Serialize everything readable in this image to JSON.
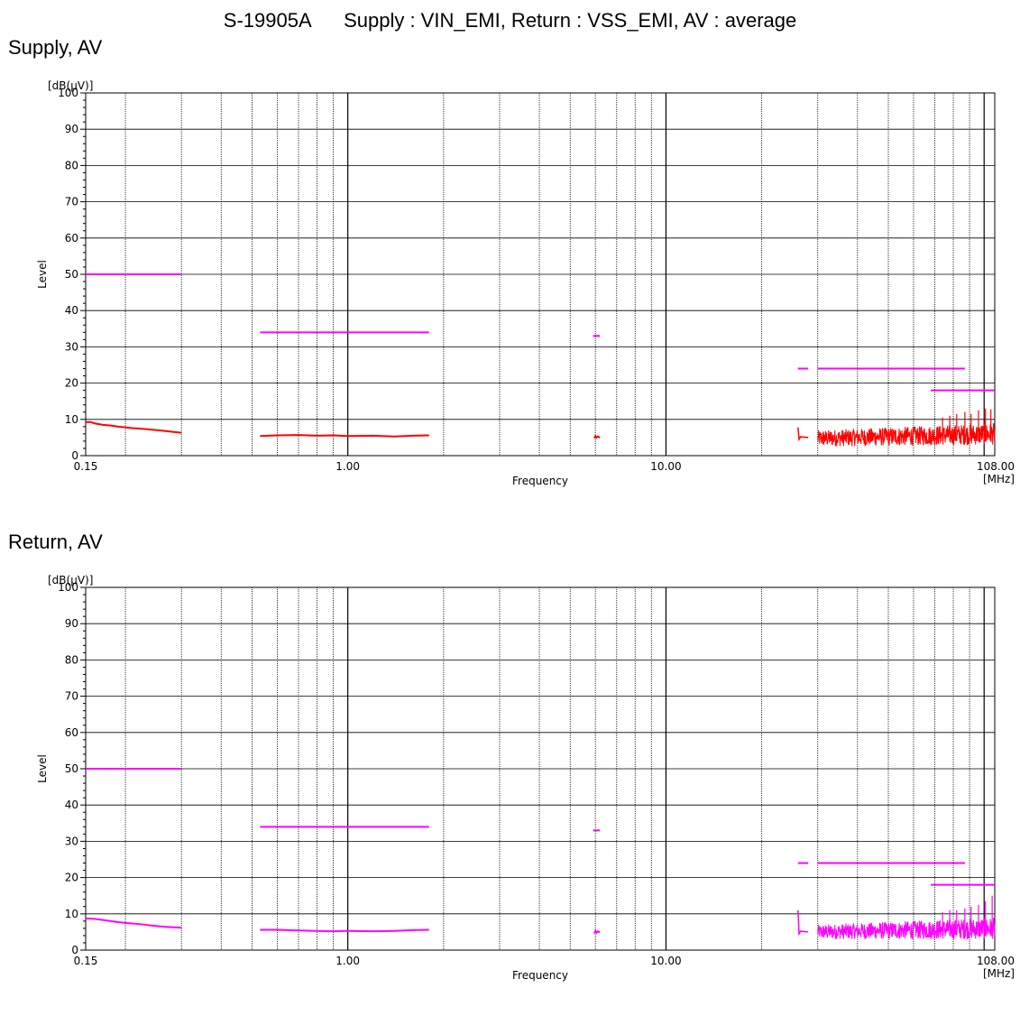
{
  "page": {
    "title": "S-19905A      Supply : VIN_EMI, Return : VSS_EMI, AV : average"
  },
  "colors": {
    "limit": "#ff00ff",
    "supply_trace": "#ff0000",
    "return_trace": "#ff00ff",
    "grid": "#000000"
  },
  "chart_data": [
    {
      "type": "line",
      "title": "Supply, AV",
      "xlabel": "Frequency",
      "xunit": "[MHz]",
      "ylabel": "Level",
      "yunit": "[dB(μV)]",
      "xscale": "log",
      "xlim": [
        0.15,
        108
      ],
      "ylim": [
        0,
        100
      ],
      "xtick_labels": [
        "0.15",
        "1.00",
        "10.00",
        "108.00"
      ],
      "ytick_labels": [
        "0",
        "10",
        "20",
        "30",
        "40",
        "50",
        "60",
        "70",
        "80",
        "90",
        "100"
      ],
      "grid": true,
      "series": [
        {
          "role": "limit",
          "segments": [
            [
              [
                0.15,
                50
              ],
              [
                0.3,
                50
              ]
            ],
            [
              [
                0.53,
                34
              ],
              [
                1.8,
                34
              ]
            ],
            [
              [
                5.9,
                33
              ],
              [
                6.2,
                33
              ]
            ],
            [
              [
                26,
                24
              ],
              [
                28,
                24
              ]
            ],
            [
              [
                30,
                24
              ],
              [
                87,
                24
              ]
            ],
            [
              [
                68,
                18
              ],
              [
                108,
                18
              ]
            ]
          ]
        },
        {
          "role": "measurement",
          "segments": [
            [
              [
                0.15,
                9.2
              ],
              [
                0.155,
                9.3
              ],
              [
                0.16,
                8.9
              ],
              [
                0.17,
                8.5
              ],
              [
                0.18,
                8.3
              ],
              [
                0.19,
                8.0
              ],
              [
                0.2,
                7.8
              ],
              [
                0.21,
                7.6
              ],
              [
                0.22,
                7.5
              ],
              [
                0.24,
                7.2
              ],
              [
                0.26,
                6.9
              ],
              [
                0.28,
                6.6
              ],
              [
                0.3,
                6.3
              ]
            ],
            [
              [
                0.53,
                5.4
              ],
              [
                0.6,
                5.6
              ],
              [
                0.7,
                5.7
              ],
              [
                0.8,
                5.5
              ],
              [
                0.9,
                5.6
              ],
              [
                1.0,
                5.4
              ],
              [
                1.2,
                5.5
              ],
              [
                1.4,
                5.3
              ],
              [
                1.6,
                5.5
              ],
              [
                1.8,
                5.6
              ]
            ],
            [
              [
                5.95,
                4.8
              ],
              [
                6.0,
                5.4
              ],
              [
                6.05,
                5.0
              ],
              [
                6.1,
                5.3
              ],
              [
                6.2,
                5.0
              ]
            ]
          ],
          "noise_band": {
            "start_points": [
              [
                26,
                7.8
              ],
              [
                26.2,
                4.5
              ],
              [
                26.5,
                5.2
              ],
              [
                28,
                5.0
              ]
            ],
            "x": [
              30,
              108
            ],
            "low": [
              2.5,
              3.0
            ],
            "high": [
              7.0,
              9.0
            ],
            "spikes": [
              [
                74,
                10.5
              ],
              [
                78,
                11.0
              ],
              [
                82,
                11.5
              ],
              [
                87,
                12.0
              ],
              [
                91,
                11.5
              ],
              [
                96,
                12.5
              ],
              [
                101,
                13.0
              ],
              [
                105,
                12.8
              ]
            ]
          }
        }
      ]
    },
    {
      "type": "line",
      "title": "Return, AV",
      "xlabel": "Frequency",
      "xunit": "[MHz]",
      "ylabel": "Level",
      "yunit": "[dB(μV)]",
      "xscale": "log",
      "xlim": [
        0.15,
        108
      ],
      "ylim": [
        0,
        100
      ],
      "xtick_labels": [
        "0.15",
        "1.00",
        "10.00",
        "108.00"
      ],
      "ytick_labels": [
        "0",
        "10",
        "20",
        "30",
        "40",
        "50",
        "60",
        "70",
        "80",
        "90",
        "100"
      ],
      "grid": true,
      "series": [
        {
          "role": "limit",
          "segments": [
            [
              [
                0.15,
                50
              ],
              [
                0.3,
                50
              ]
            ],
            [
              [
                0.53,
                34
              ],
              [
                1.8,
                34
              ]
            ],
            [
              [
                5.9,
                33
              ],
              [
                6.2,
                33
              ]
            ],
            [
              [
                26,
                24
              ],
              [
                28,
                24
              ]
            ],
            [
              [
                30,
                24
              ],
              [
                87,
                24
              ]
            ],
            [
              [
                68,
                18
              ],
              [
                108,
                18
              ]
            ]
          ]
        },
        {
          "role": "measurement",
          "segments": [
            [
              [
                0.15,
                8.7
              ],
              [
                0.16,
                8.6
              ],
              [
                0.17,
                8.3
              ],
              [
                0.18,
                8.0
              ],
              [
                0.19,
                7.7
              ],
              [
                0.2,
                7.5
              ],
              [
                0.22,
                7.2
              ],
              [
                0.24,
                6.8
              ],
              [
                0.26,
                6.5
              ],
              [
                0.28,
                6.3
              ],
              [
                0.3,
                6.2
              ]
            ],
            [
              [
                0.53,
                5.6
              ],
              [
                0.6,
                5.6
              ],
              [
                0.7,
                5.4
              ],
              [
                0.8,
                5.3
              ],
              [
                0.9,
                5.2
              ],
              [
                1.0,
                5.3
              ],
              [
                1.2,
                5.2
              ],
              [
                1.4,
                5.3
              ],
              [
                1.6,
                5.5
              ],
              [
                1.8,
                5.6
              ]
            ],
            [
              [
                5.95,
                4.6
              ],
              [
                6.0,
                5.3
              ],
              [
                6.05,
                4.8
              ],
              [
                6.1,
                5.2
              ],
              [
                6.2,
                4.9
              ]
            ]
          ],
          "noise_band": {
            "start_points": [
              [
                26,
                11.0
              ],
              [
                26.2,
                4.5
              ],
              [
                26.5,
                5.2
              ],
              [
                28,
                5.0
              ]
            ],
            "x": [
              30,
              108
            ],
            "low": [
              3.0,
              3.0
            ],
            "high": [
              7.0,
              9.0
            ],
            "spikes": [
              [
                74,
                10.5
              ],
              [
                78,
                11.0
              ],
              [
                82,
                11.0
              ],
              [
                87,
                11.5
              ],
              [
                91,
                12.0
              ],
              [
                96,
                12.5
              ],
              [
                101,
                13.5
              ],
              [
                106,
                15.0
              ]
            ]
          }
        }
      ]
    }
  ]
}
